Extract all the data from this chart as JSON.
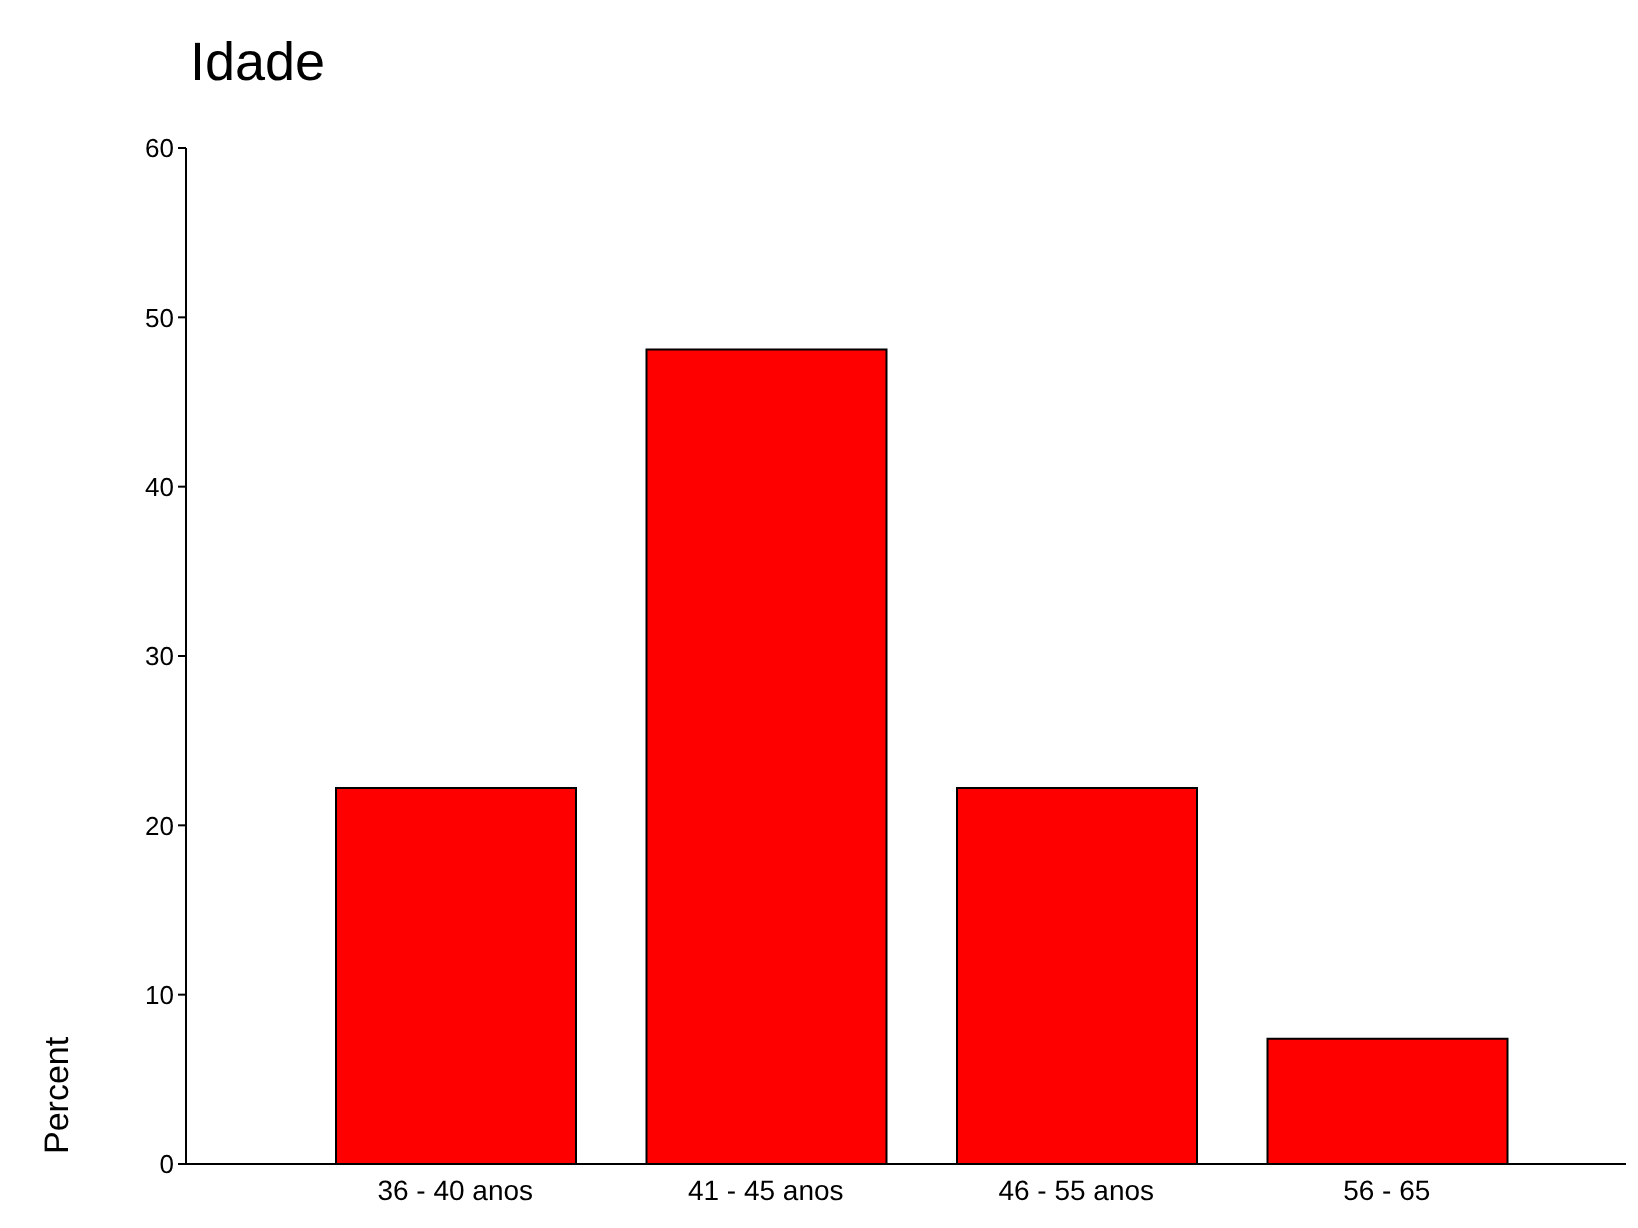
{
  "chart_data": {
    "type": "bar",
    "title": "Idade",
    "ylabel": "Percent",
    "categories": [
      "36 - 40 anos",
      "41 - 45 anos",
      "46 - 55 anos",
      "56 - 65"
    ],
    "values": [
      22.2,
      48.1,
      22.2,
      7.4
    ],
    "color": "#ff0000",
    "ylim": [
      0,
      60
    ],
    "yticks": [
      0,
      10,
      20,
      30,
      40,
      50,
      60
    ],
    "grid": false,
    "legend": false
  }
}
